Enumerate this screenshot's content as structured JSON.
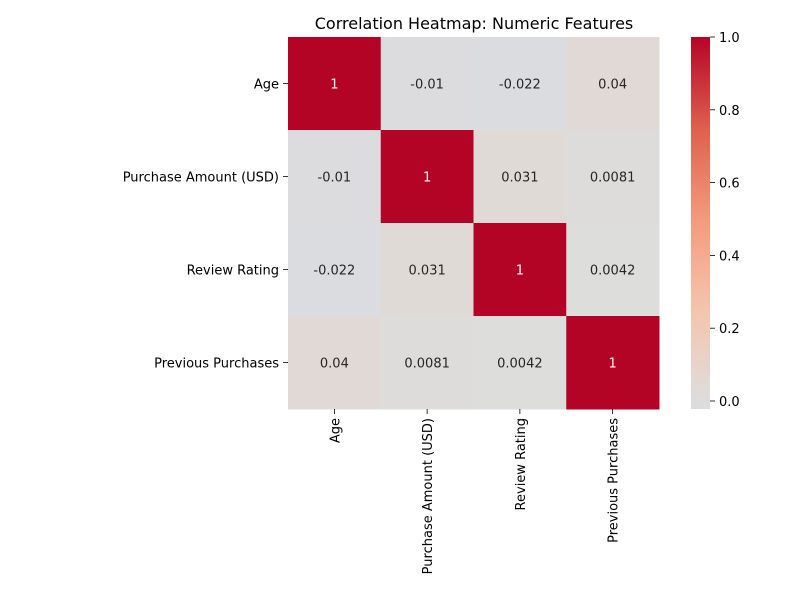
{
  "chart_data": {
    "type": "heatmap",
    "title": "Correlation Heatmap: Numeric Features",
    "xlabel": "",
    "ylabel": "",
    "x_categories": [
      "Age",
      "Purchase Amount (USD)",
      "Review Rating",
      "Previous Purchases"
    ],
    "y_categories": [
      "Age",
      "Purchase Amount (USD)",
      "Review Rating",
      "Previous Purchases"
    ],
    "values": [
      [
        1,
        -0.01,
        -0.022,
        0.04
      ],
      [
        -0.01,
        1,
        0.031,
        0.0081
      ],
      [
        -0.022,
        0.031,
        1,
        0.0042
      ],
      [
        0.04,
        0.0081,
        0.0042,
        1
      ]
    ],
    "annotations": [
      [
        "1",
        "-0.01",
        "-0.022",
        "0.04"
      ],
      [
        "-0.01",
        "1",
        "0.031",
        "0.0081"
      ],
      [
        "-0.022",
        "0.031",
        "1",
        "0.0042"
      ],
      [
        "0.04",
        "0.0081",
        "0.0042",
        "1"
      ]
    ],
    "colormap": "coolwarm",
    "center": 0,
    "colorbar": {
      "range": [
        -0.022,
        1
      ],
      "ticks": [
        0.0,
        0.2,
        0.4,
        0.6,
        0.8,
        1.0
      ],
      "tick_labels": [
        "0.0",
        "0.2",
        "0.4",
        "0.6",
        "0.8",
        "1.0"
      ],
      "placement": "right"
    },
    "grid": false
  }
}
